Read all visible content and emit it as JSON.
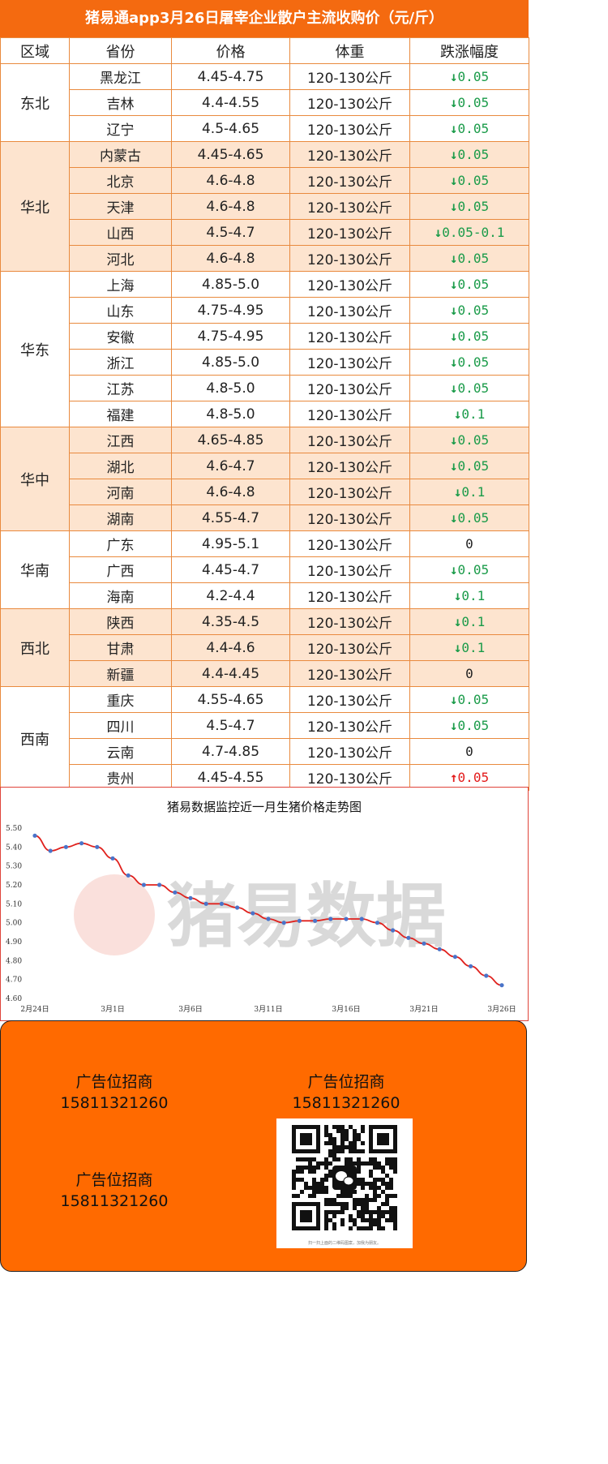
{
  "title": "猪易通app3月26日屠宰企业散户主流收购价（元/斤）",
  "table": {
    "headers": [
      "区域",
      "省份",
      "价格",
      "体重",
      "跌涨幅度"
    ],
    "groups": [
      {
        "region": "东北",
        "rows": [
          {
            "province": "黑龙江",
            "price": "4.45-4.75",
            "weight": "120-130公斤",
            "change": "0.05",
            "dir": "down"
          },
          {
            "province": "吉林",
            "price": "4.4-4.55",
            "weight": "120-130公斤",
            "change": "0.05",
            "dir": "down"
          },
          {
            "province": "辽宁",
            "price": "4.5-4.65",
            "weight": "120-130公斤",
            "change": "0.05",
            "dir": "down"
          }
        ]
      },
      {
        "region": "华北",
        "rows": [
          {
            "province": "内蒙古",
            "price": "4.45-4.65",
            "weight": "120-130公斤",
            "change": "0.05",
            "dir": "down"
          },
          {
            "province": "北京",
            "price": "4.6-4.8",
            "weight": "120-130公斤",
            "change": "0.05",
            "dir": "down"
          },
          {
            "province": "天津",
            "price": "4.6-4.8",
            "weight": "120-130公斤",
            "change": "0.05",
            "dir": "down"
          },
          {
            "province": "山西",
            "price": "4.5-4.7",
            "weight": "120-130公斤",
            "change": "0.05-0.1",
            "dir": "down"
          },
          {
            "province": "河北",
            "price": "4.6-4.8",
            "weight": "120-130公斤",
            "change": "0.05",
            "dir": "down"
          }
        ]
      },
      {
        "region": "华东",
        "rows": [
          {
            "province": "上海",
            "price": "4.85-5.0",
            "weight": "120-130公斤",
            "change": "0.05",
            "dir": "down"
          },
          {
            "province": "山东",
            "price": "4.75-4.95",
            "weight": "120-130公斤",
            "change": "0.05",
            "dir": "down"
          },
          {
            "province": "安徽",
            "price": "4.75-4.95",
            "weight": "120-130公斤",
            "change": "0.05",
            "dir": "down"
          },
          {
            "province": "浙江",
            "price": "4.85-5.0",
            "weight": "120-130公斤",
            "change": "0.05",
            "dir": "down"
          },
          {
            "province": "江苏",
            "price": "4.8-5.0",
            "weight": "120-130公斤",
            "change": "0.05",
            "dir": "down"
          },
          {
            "province": "福建",
            "price": "4.8-5.0",
            "weight": "120-130公斤",
            "change": "0.1",
            "dir": "down"
          }
        ]
      },
      {
        "region": "华中",
        "rows": [
          {
            "province": "江西",
            "price": "4.65-4.85",
            "weight": "120-130公斤",
            "change": "0.05",
            "dir": "down"
          },
          {
            "province": "湖北",
            "price": "4.6-4.7",
            "weight": "120-130公斤",
            "change": "0.05",
            "dir": "down"
          },
          {
            "province": "河南",
            "price": "4.6-4.8",
            "weight": "120-130公斤",
            "change": "0.1",
            "dir": "down"
          },
          {
            "province": "湖南",
            "price": "4.55-4.7",
            "weight": "120-130公斤",
            "change": "0.05",
            "dir": "down"
          }
        ]
      },
      {
        "region": "华南",
        "rows": [
          {
            "province": "广东",
            "price": "4.95-5.1",
            "weight": "120-130公斤",
            "change": "0",
            "dir": "flat"
          },
          {
            "province": "广西",
            "price": "4.45-4.7",
            "weight": "120-130公斤",
            "change": "0.05",
            "dir": "down"
          },
          {
            "province": "海南",
            "price": "4.2-4.4",
            "weight": "120-130公斤",
            "change": "0.1",
            "dir": "down"
          }
        ]
      },
      {
        "region": "西北",
        "rows": [
          {
            "province": "陕西",
            "price": "4.35-4.5",
            "weight": "120-130公斤",
            "change": "0.1",
            "dir": "down"
          },
          {
            "province": "甘肃",
            "price": "4.4-4.6",
            "weight": "120-130公斤",
            "change": "0.1",
            "dir": "down"
          },
          {
            "province": "新疆",
            "price": "4.4-4.45",
            "weight": "120-130公斤",
            "change": "0",
            "dir": "flat"
          }
        ]
      },
      {
        "region": "西南",
        "rows": [
          {
            "province": "重庆",
            "price": "4.55-4.65",
            "weight": "120-130公斤",
            "change": "0.05",
            "dir": "down"
          },
          {
            "province": "四川",
            "price": "4.5-4.7",
            "weight": "120-130公斤",
            "change": "0.05",
            "dir": "down"
          },
          {
            "province": "云南",
            "price": "4.7-4.85",
            "weight": "120-130公斤",
            "change": "0",
            "dir": "flat"
          },
          {
            "province": "贵州",
            "price": "4.45-4.55",
            "weight": "120-130公斤",
            "change": "0.05",
            "dir": "up"
          }
        ]
      }
    ]
  },
  "colors": {
    "accent": "#f46a10",
    "band": "#fde4cf",
    "down": "#1a9b49",
    "up": "#e31b1b",
    "line": "#e0201c",
    "marker": "#4a74c9"
  },
  "watermark": "猪易数据",
  "chart_data": {
    "type": "line",
    "title": "猪易数据监控近一月生猪价格走势图",
    "x": [
      "2月24日",
      "2月25日",
      "2月26日",
      "2月27日",
      "2月28日",
      "3月1日",
      "3月2日",
      "3月3日",
      "3月4日",
      "3月5日",
      "3月6日",
      "3月7日",
      "3月8日",
      "3月9日",
      "3月10日",
      "3月11日",
      "3月12日",
      "3月13日",
      "3月14日",
      "3月15日",
      "3月16日",
      "3月17日",
      "3月18日",
      "3月19日",
      "3月20日",
      "3月21日",
      "3月22日",
      "3月23日",
      "3月24日",
      "3月25日",
      "3月26日"
    ],
    "xtick_labels": [
      "2月24日",
      "3月1日",
      "3月6日",
      "3月11日",
      "3月16日",
      "3月21日",
      "3月26日"
    ],
    "xtick_index": [
      0,
      5,
      10,
      15,
      20,
      25,
      30
    ],
    "values": [
      5.46,
      5.38,
      5.4,
      5.42,
      5.4,
      5.34,
      5.25,
      5.2,
      5.2,
      5.16,
      5.13,
      5.1,
      5.1,
      5.08,
      5.05,
      5.02,
      5.0,
      5.01,
      5.01,
      5.02,
      5.02,
      5.02,
      5.0,
      4.96,
      4.92,
      4.89,
      4.86,
      4.82,
      4.77,
      4.72,
      4.67
    ],
    "ylim": [
      4.6,
      5.5
    ],
    "yticks": [
      "4.60",
      "4.70",
      "4.80",
      "4.90",
      "5.00",
      "5.10",
      "5.20",
      "5.30",
      "5.40",
      "5.50"
    ],
    "grid": false
  },
  "ads": [
    {
      "label": "广告位招商",
      "phone": "15811321260"
    },
    {
      "label": "广告位招商",
      "phone": "15811321260"
    },
    {
      "label": "广告位招商",
      "phone": "15811321260"
    }
  ],
  "qr": {
    "icon": "wechat-icon",
    "caption": "扫一扫上面的二维码图案，加我为朋友。"
  }
}
